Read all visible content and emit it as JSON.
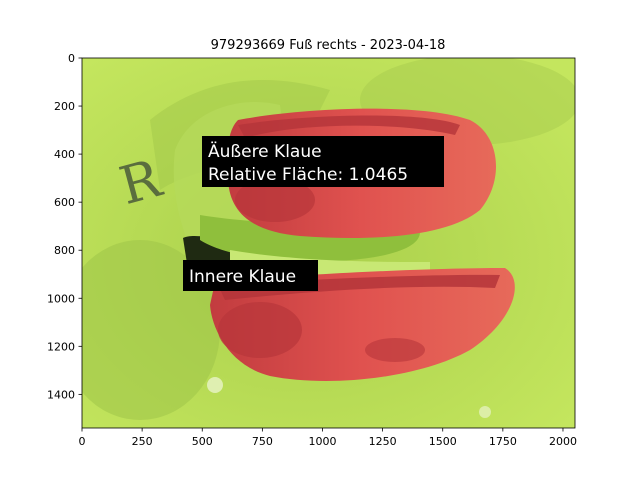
{
  "figure": {
    "title": "979293669 Fuß rechts - 2023-04-18"
  },
  "image_plot": {
    "x_ticks": [
      "0",
      "250",
      "500",
      "750",
      "1000",
      "1250",
      "1500",
      "1750",
      "2000"
    ],
    "y_ticks": [
      "0",
      "200",
      "400",
      "600",
      "800",
      "1000",
      "1200",
      "1400"
    ],
    "annotations": [
      {
        "lines": [
          "Äußere Klaue",
          "Relative Fläche: 1.0465"
        ]
      },
      {
        "lines": [
          "Innere Klaue"
        ]
      }
    ],
    "colors": {
      "background": "#bfe25a",
      "background_dark": "#9ec544",
      "claw_red": "#d94b4b",
      "claw_dark": "#b8363a",
      "annotation_box": "#000000",
      "annotation_text": "#ffffff"
    }
  }
}
